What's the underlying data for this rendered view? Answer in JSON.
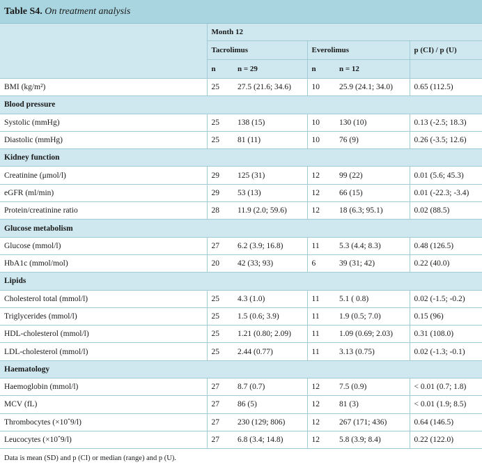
{
  "caption": {
    "label": "Table S4.",
    "title": "On treatment analysis"
  },
  "header": {
    "month": "Month 12",
    "tacrolimus": "Tacrolimus",
    "everolimus": "Everolimus",
    "pvalue": "p (CI) / p (U)",
    "n": "n",
    "tac_n": "n = 29",
    "eve_n": "n = 12"
  },
  "rows": [
    {
      "type": "data",
      "label": "BMI (kg/m²)",
      "n1": "25",
      "v1": "27.5 (21.6; 34.6)",
      "n2": "10",
      "v2": "25.9 (24.1; 34.0)",
      "p": "0.65 (112.5)"
    },
    {
      "type": "section",
      "label": "Blood pressure"
    },
    {
      "type": "data",
      "label": "Systolic (mmHg)",
      "n1": "25",
      "v1": "138 (15)",
      "n2": "10",
      "v2": "130 (10)",
      "p": "0.13 (-2.5; 18.3)"
    },
    {
      "type": "data",
      "label": "Diastolic (mmHg)",
      "n1": "25",
      "v1": "81 (11)",
      "n2": "10",
      "v2": "76 (9)",
      "p": "0.26 (-3.5; 12.6)"
    },
    {
      "type": "section",
      "label": "Kidney function"
    },
    {
      "type": "data",
      "label": "Creatinine (μmol/l)",
      "n1": "29",
      "v1": "125 (31)",
      "n2": "12",
      "v2": "99 (22)",
      "p": "0.01 (5.6; 45.3)"
    },
    {
      "type": "data",
      "label": "eGFR (ml/min)",
      "n1": "29",
      "v1": "53 (13)",
      "n2": "12",
      "v2": "66 (15)",
      "p": "0.01 (-22.3; -3.4)"
    },
    {
      "type": "data",
      "label": "Protein/creatinine ratio",
      "n1": "28",
      "v1": "11.9 (2.0; 59.6)",
      "n2": "12",
      "v2": "18 (6.3; 95.1)",
      "p": "0.02 (88.5)"
    },
    {
      "type": "section",
      "label": "Glucose metabolism"
    },
    {
      "type": "data",
      "label": "Glucose (mmol/l)",
      "n1": "27",
      "v1": "6.2 (3.9; 16.8)",
      "n2": "11",
      "v2": "5.3 (4.4; 8.3)",
      "p": "0.48 (126.5)"
    },
    {
      "type": "data",
      "label": "HbA1c (mmol/mol)",
      "n1": "20",
      "v1": "42 (33; 93)",
      "n2": "6",
      "v2": "39 (31; 42)",
      "p": "0.22 (40.0)"
    },
    {
      "type": "section",
      "label": "Lipids"
    },
    {
      "type": "data",
      "label": "Cholesterol total (mmol/l)",
      "n1": "25",
      "v1": "4.3 (1.0)",
      "n2": "11",
      "v2": "5.1 ( 0.8)",
      "p": "0.02 (-1.5; -0.2)"
    },
    {
      "type": "data",
      "label": "Triglycerides (mmol/l)",
      "n1": "25",
      "v1": "1.5 (0.6; 3.9)",
      "n2": "11",
      "v2": "1.9 (0.5; 7.0)",
      "p": "0.15 (96)"
    },
    {
      "type": "data",
      "label": "HDL-cholesterol (mmol/l)",
      "n1": "25",
      "v1": "1.21 (0.80; 2.09)",
      "n2": "11",
      "v2": "1.09 (0.69; 2.03)",
      "p": "0.31 (108.0)"
    },
    {
      "type": "data",
      "label": "LDL-cholesterol (mmol/l)",
      "n1": "25",
      "v1": "2.44 (0.77)",
      "n2": "11",
      "v2": "3.13 (0.75)",
      "p": "0.02 (-1.3; -0.1)"
    },
    {
      "type": "section",
      "label": "Haematology"
    },
    {
      "type": "data",
      "label": "Haemoglobin (mmol/l)",
      "n1": "27",
      "v1": "8.7 (0.7)",
      "n2": "12",
      "v2": "7.5 (0.9)",
      "p": "< 0.01 (0.7; 1.8)"
    },
    {
      "type": "data",
      "label": "MCV (fL)",
      "n1": "27",
      "v1": "86 (5)",
      "n2": "12",
      "v2": "81 (3)",
      "p": "< 0.01 (1.9; 8.5)"
    },
    {
      "type": "data",
      "label": "Thrombocytes (×10ˆ9/l)",
      "n1": "27",
      "v1": "230 (129; 806)",
      "n2": "12",
      "v2": "267 (171; 436)",
      "p": "0.64 (146.5)"
    },
    {
      "type": "data",
      "label": "Leucocytes (×10ˆ9/l)",
      "n1": "27",
      "v1": "6.8 (3.4; 14.8)",
      "n2": "12",
      "v2": "5.8 (3.9; 8.4)",
      "p": "0.22 (122.0)"
    }
  ],
  "footnote": "Data is mean (SD) and p (CI) or median (range) and p (U)."
}
